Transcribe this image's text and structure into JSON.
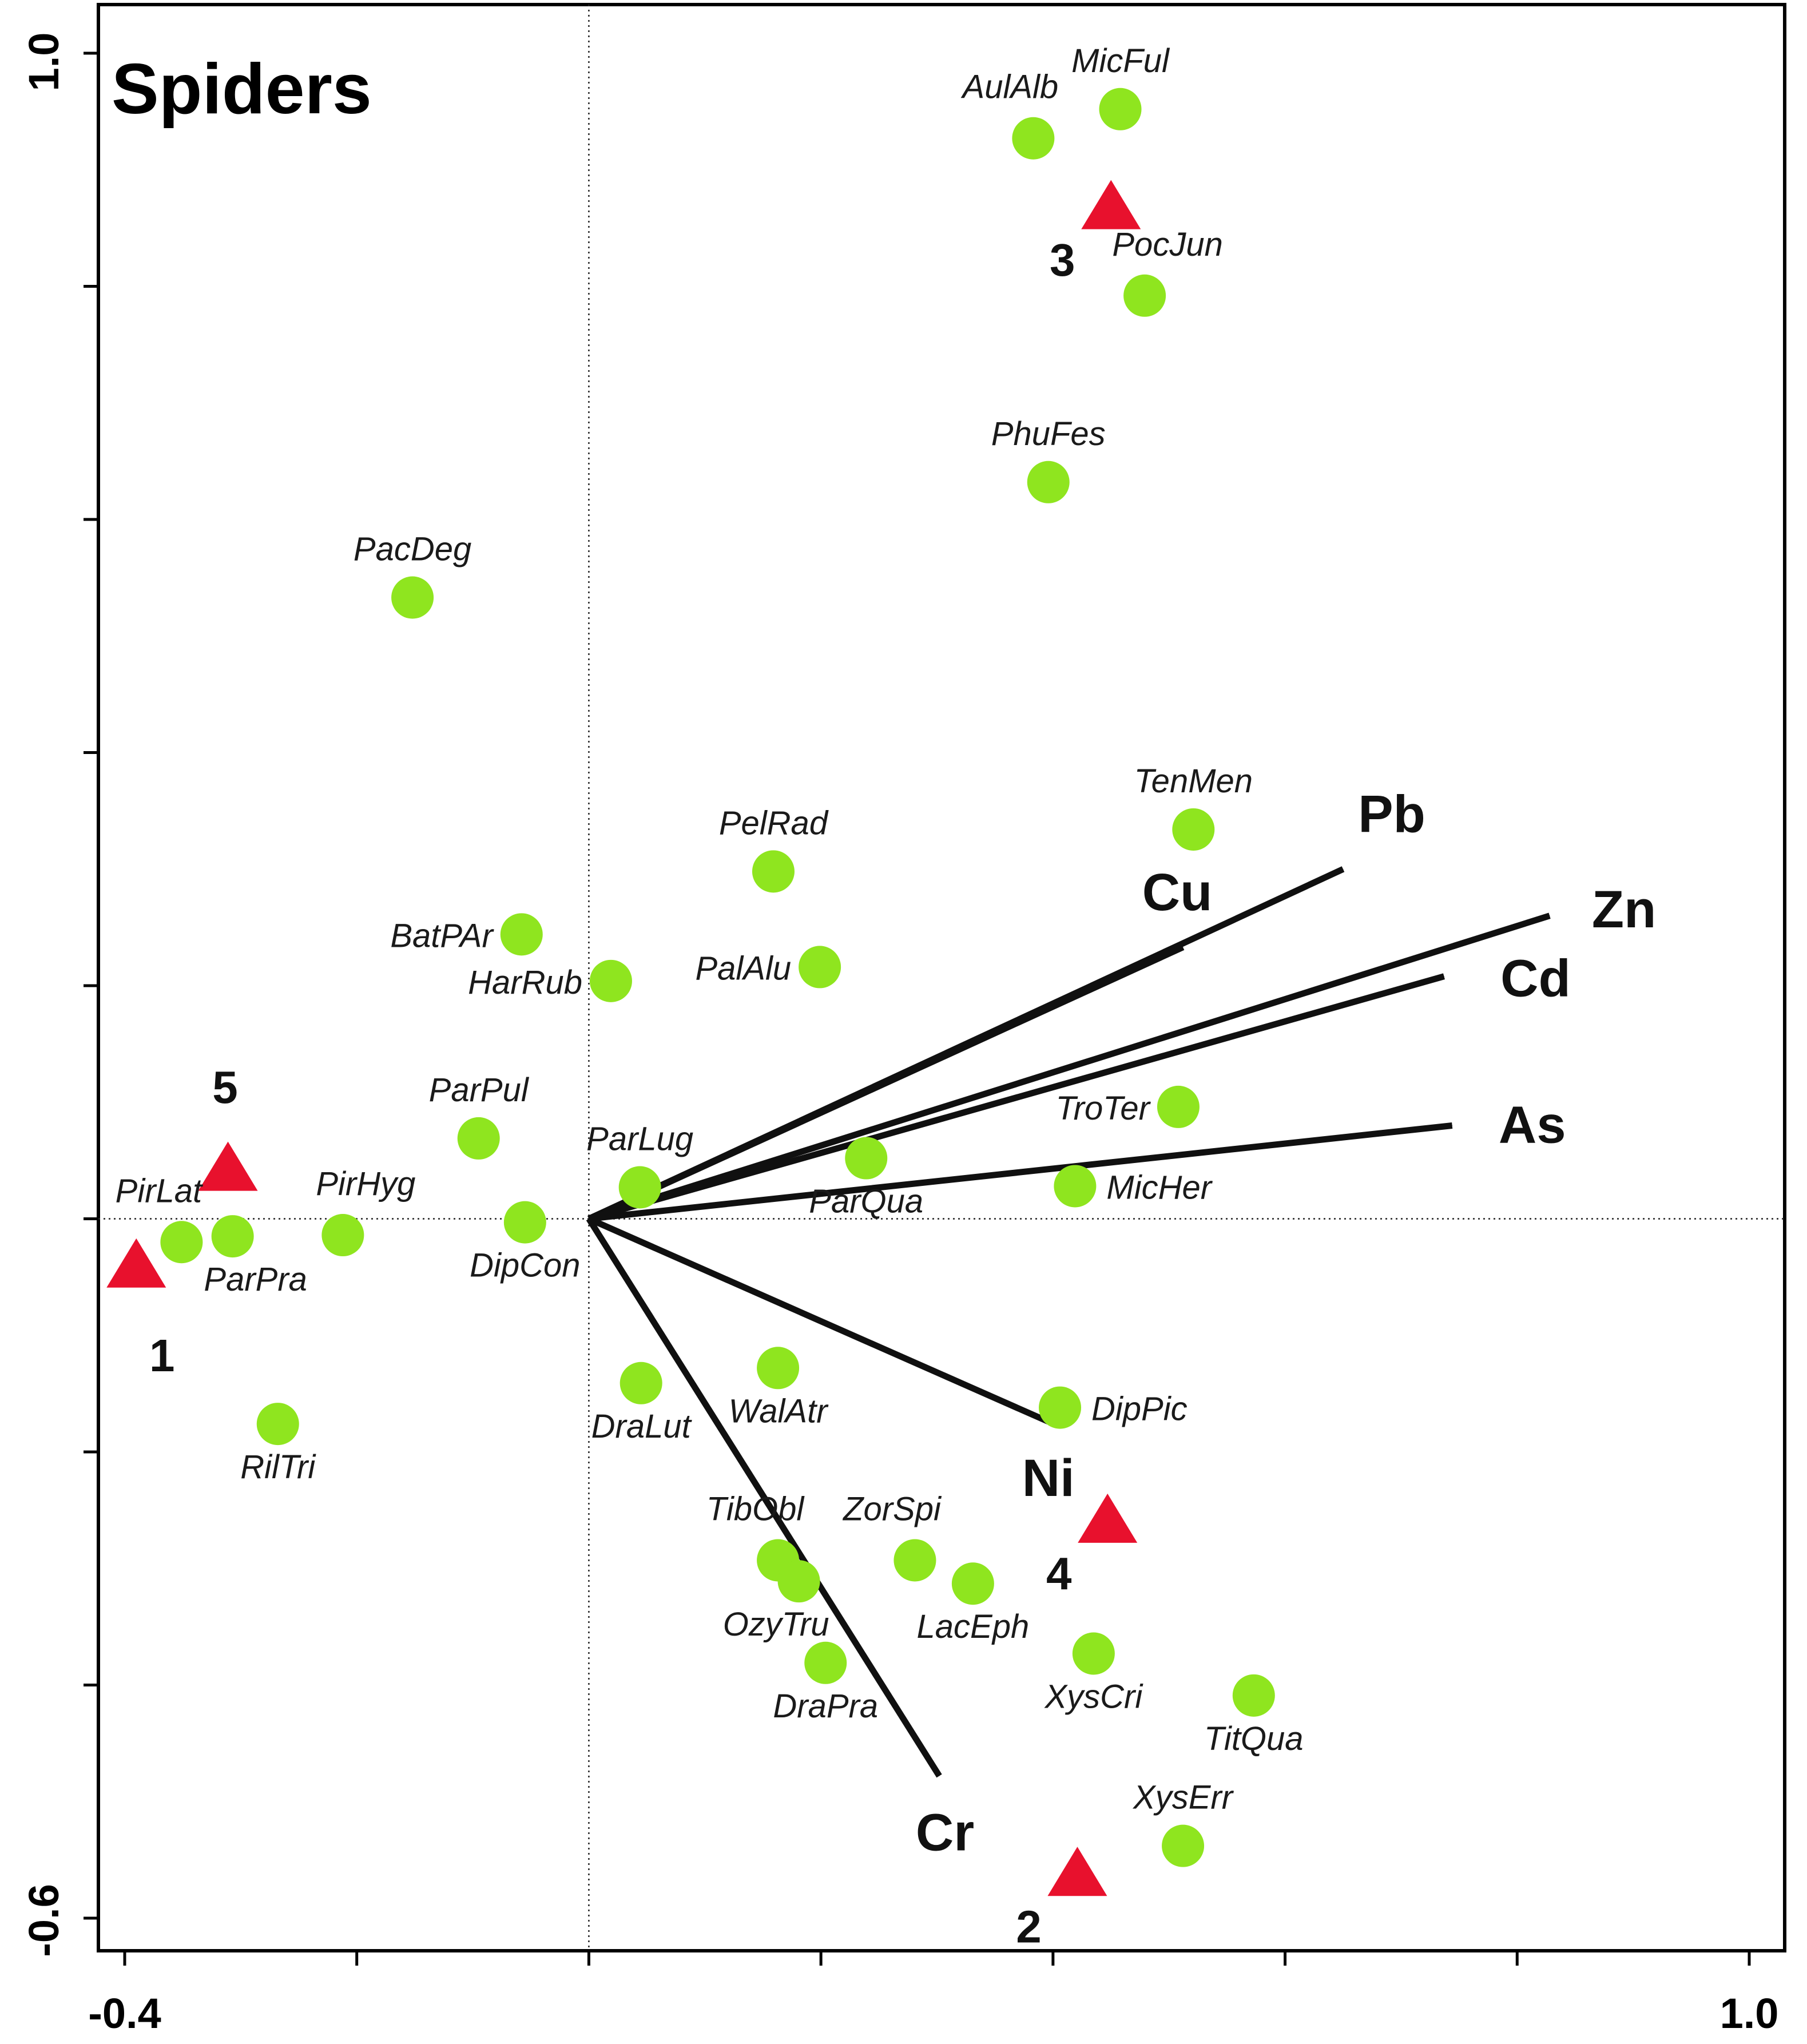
{
  "title": "Spiders",
  "colors": {
    "species": "#8fe51f",
    "sites": "#e8112d",
    "arrows": "#101010",
    "background": "#ffffff"
  },
  "chart_data": {
    "type": "scatter",
    "subtype": "ordination biplot",
    "title": "Spiders",
    "xlim": [
      -0.4,
      1.0
    ],
    "ylim": [
      -0.6,
      1.0
    ],
    "x_tick_labels": [
      "-0.4",
      "1.0"
    ],
    "y_tick_labels": [
      "-0.6",
      "1.0"
    ],
    "x_ticks": [
      -0.4,
      -0.2,
      0.0,
      0.2,
      0.4,
      0.6,
      0.8,
      1.0
    ],
    "y_ticks": [
      -0.6,
      -0.4,
      -0.2,
      0.0,
      0.2,
      0.4,
      0.6,
      0.8,
      1.0
    ],
    "reference_lines": {
      "x": 0.0,
      "y": 0.0,
      "style": "dotted"
    },
    "species": [
      {
        "label": "AulAlb",
        "x": 0.383,
        "y": 0.927,
        "label_pos": "above-left"
      },
      {
        "label": "MicFul",
        "x": 0.458,
        "y": 0.952,
        "label_pos": "above"
      },
      {
        "label": "PocJun",
        "x": 0.479,
        "y": 0.792,
        "label_pos": "above-right"
      },
      {
        "label": "PhuFes",
        "x": 0.396,
        "y": 0.632,
        "label_pos": "above"
      },
      {
        "label": "PacDeg",
        "x": -0.152,
        "y": 0.533,
        "label_pos": "above"
      },
      {
        "label": "TenMen",
        "x": 0.521,
        "y": 0.334,
        "label_pos": "above"
      },
      {
        "label": "PelRad",
        "x": 0.159,
        "y": 0.298,
        "label_pos": "above"
      },
      {
        "label": "BatPAr",
        "x": -0.058,
        "y": 0.244,
        "label_pos": "left"
      },
      {
        "label": "HarRub",
        "x": 0.019,
        "y": 0.204,
        "label_pos": "left"
      },
      {
        "label": "PalAlu",
        "x": 0.199,
        "y": 0.216,
        "label_pos": "left"
      },
      {
        "label": "TroTer",
        "x": 0.508,
        "y": 0.096,
        "label_pos": "left"
      },
      {
        "label": "ParPul",
        "x": -0.095,
        "y": 0.069,
        "label_pos": "above"
      },
      {
        "label": "ParLug",
        "x": 0.044,
        "y": 0.027,
        "label_pos": "above"
      },
      {
        "label": "ParQua",
        "x": 0.239,
        "y": 0.052,
        "label_pos": "below"
      },
      {
        "label": "MicHer",
        "x": 0.419,
        "y": 0.028,
        "label_pos": "right"
      },
      {
        "label": "PirHyg",
        "x": -0.212,
        "y": -0.014,
        "label_pos": "above-right"
      },
      {
        "label": "PirLat",
        "x": -0.351,
        "y": -0.02,
        "label_pos": "above-left"
      },
      {
        "label": "ParPra",
        "x": -0.307,
        "y": -0.015,
        "label_pos": "below-right"
      },
      {
        "label": "DipCon",
        "x": -0.055,
        "y": -0.003,
        "label_pos": "below"
      },
      {
        "label": "RilTri",
        "x": -0.268,
        "y": -0.176,
        "label_pos": "below"
      },
      {
        "label": "DraLut",
        "x": 0.045,
        "y": -0.141,
        "label_pos": "below"
      },
      {
        "label": "WalAtr",
        "x": 0.163,
        "y": -0.128,
        "label_pos": "below"
      },
      {
        "label": "DipPic",
        "x": 0.406,
        "y": -0.162,
        "label_pos": "right"
      },
      {
        "label": "ZorSpi",
        "x": 0.281,
        "y": -0.293,
        "label_pos": "above-left"
      },
      {
        "label": "LacEph",
        "x": 0.331,
        "y": -0.313,
        "label_pos": "below"
      },
      {
        "label": "TibObl",
        "x": 0.163,
        "y": -0.293,
        "label_pos": "above-left"
      },
      {
        "label": "OzyTru",
        "x": 0.181,
        "y": -0.311,
        "label_pos": "below-left"
      },
      {
        "label": "DraPra",
        "x": 0.204,
        "y": -0.381,
        "label_pos": "below"
      },
      {
        "label": "XysCri",
        "x": 0.435,
        "y": -0.373,
        "label_pos": "below"
      },
      {
        "label": "TitQua",
        "x": 0.573,
        "y": -0.409,
        "label_pos": "below"
      },
      {
        "label": "XysErr",
        "x": 0.512,
        "y": -0.538,
        "label_pos": "above"
      }
    ],
    "sites": [
      {
        "label": "1",
        "x": -0.39,
        "y": -0.04
      },
      {
        "label": "2",
        "x": 0.421,
        "y": -0.562
      },
      {
        "label": "3",
        "x": 0.45,
        "y": 0.868
      },
      {
        "label": "4",
        "x": 0.447,
        "y": -0.259
      },
      {
        "label": "5",
        "x": -0.311,
        "y": 0.043
      }
    ],
    "environmental_vectors": [
      {
        "label": "Pb",
        "x": 0.65,
        "y": 0.3
      },
      {
        "label": "Cu",
        "x": 0.512,
        "y": 0.233
      },
      {
        "label": "Zn",
        "x": 0.828,
        "y": 0.26
      },
      {
        "label": "Cd",
        "x": 0.737,
        "y": 0.208
      },
      {
        "label": "As",
        "x": 0.744,
        "y": 0.08
      },
      {
        "label": "Ni",
        "x": 0.396,
        "y": -0.174
      },
      {
        "label": "Cr",
        "x": 0.302,
        "y": -0.478
      }
    ]
  }
}
